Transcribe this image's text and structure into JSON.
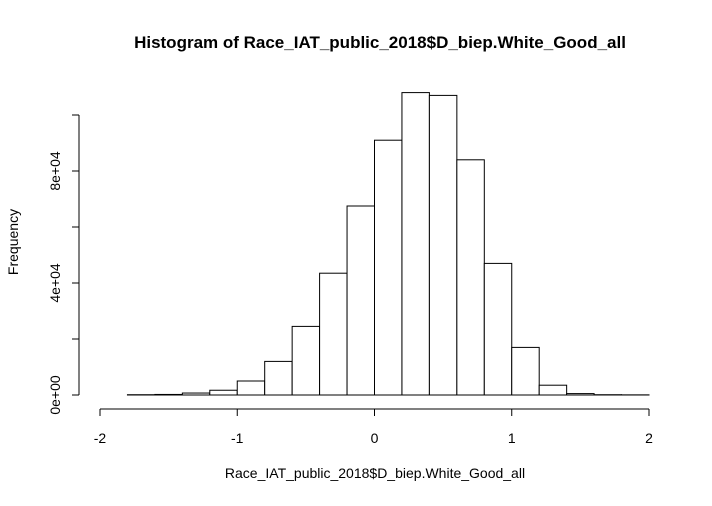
{
  "chart_data": {
    "type": "bar",
    "title": "Histogram of Race_IAT_public_2018$D_biep.White_Good_all",
    "xlabel": "Race_IAT_public_2018$D_biep.White_Good_all",
    "ylabel": "Frequency",
    "bin_width": 0.2,
    "bin_starts": [
      -1.8,
      -1.6,
      -1.4,
      -1.2,
      -1.0,
      -0.8,
      -0.6,
      -0.4,
      -0.2,
      0.0,
      0.2,
      0.4,
      0.6,
      0.8,
      1.0,
      1.2,
      1.4,
      1.6,
      1.8
    ],
    "values": [
      100,
      200,
      700,
      1700,
      5000,
      12000,
      24500,
      43500,
      67500,
      91000,
      108000,
      107000,
      84000,
      47000,
      17000,
      3500,
      500,
      100,
      50
    ],
    "xlim": [
      -2,
      2
    ],
    "ylim": [
      0,
      110000
    ],
    "x_ticks": [
      -2,
      -1,
      0,
      1,
      2
    ],
    "x_tick_labels": [
      "-2",
      "-1",
      "0",
      "1",
      "2"
    ],
    "y_ticks": [
      0,
      40000,
      80000
    ],
    "y_tick_labels": [
      "0e+00",
      "4e+04",
      "8e+04"
    ],
    "grid": false,
    "legend": "none"
  }
}
